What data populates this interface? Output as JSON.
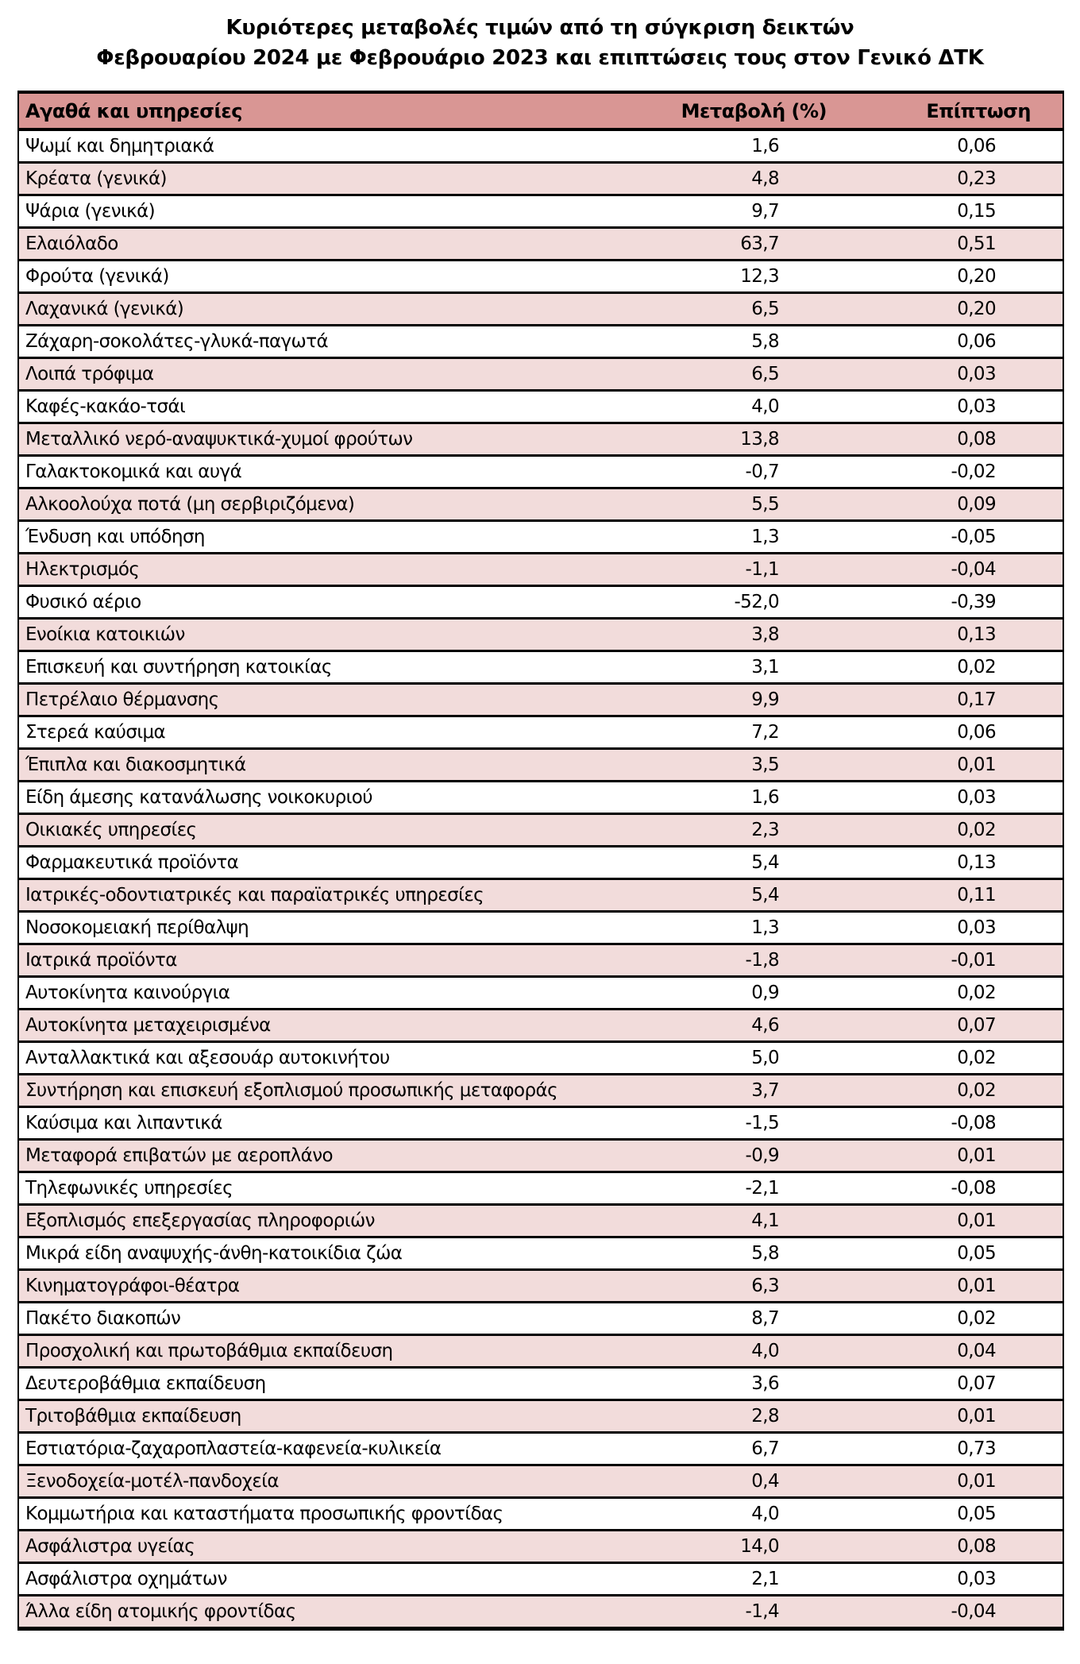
{
  "title": {
    "line1": "Κυριότερες μεταβολές τιμών από τη σύγκριση δεικτών",
    "line2": "Φεβρουαρίου 2024 με Φεβρουάριο 2023 και επιπτώσεις τους στον Γενικό ΔΤΚ"
  },
  "table": {
    "columns": [
      "Αγαθά και υπηρεσίες",
      "Μεταβολή (%)",
      "Επίπτωση"
    ],
    "rows": [
      {
        "label": "Ψωμί και δημητριακά",
        "change": "1,6",
        "impact": "0,06"
      },
      {
        "label": "Κρέατα (γενικά)",
        "change": "4,8",
        "impact": "0,23"
      },
      {
        "label": "Ψάρια (γενικά)",
        "change": "9,7",
        "impact": "0,15"
      },
      {
        "label": "Ελαιόλαδο",
        "change": "63,7",
        "impact": "0,51"
      },
      {
        "label": "Φρούτα (γενικά)",
        "change": "12,3",
        "impact": "0,20"
      },
      {
        "label": "Λαχανικά (γενικά)",
        "change": "6,5",
        "impact": "0,20"
      },
      {
        "label": "Ζάχαρη-σοκολάτες-γλυκά-παγωτά",
        "change": "5,8",
        "impact": "0,06"
      },
      {
        "label": "Λοιπά τρόφιμα",
        "change": "6,5",
        "impact": "0,03"
      },
      {
        "label": "Καφές-κακάο-τσάι",
        "change": "4,0",
        "impact": "0,03"
      },
      {
        "label": "Μεταλλικό νερό-αναψυκτικά-χυμοί φρούτων",
        "change": "13,8",
        "impact": "0,08"
      },
      {
        "label": "Γαλακτοκομικά και αυγά",
        "change": "-0,7",
        "impact": "-0,02"
      },
      {
        "label": "Αλκοολούχα ποτά (μη σερβιριζόμενα)",
        "change": "5,5",
        "impact": "0,09"
      },
      {
        "label": "Ένδυση και υπόδηση",
        "change": "1,3",
        "impact": "-0,05"
      },
      {
        "label": "Ηλεκτρισμός",
        "change": "-1,1",
        "impact": "-0,04"
      },
      {
        "label": "Φυσικό αέριο",
        "change": "-52,0",
        "impact": "-0,39"
      },
      {
        "label": "Ενοίκια κατοικιών",
        "change": "3,8",
        "impact": "0,13"
      },
      {
        "label": "Επισκευή και συντήρηση κατοικίας",
        "change": "3,1",
        "impact": "0,02"
      },
      {
        "label": "Πετρέλαιο θέρμανσης",
        "change": "9,9",
        "impact": "0,17"
      },
      {
        "label": "Στερεά καύσιμα",
        "change": "7,2",
        "impact": "0,06"
      },
      {
        "label": "Έπιπλα και διακοσμητικά",
        "change": "3,5",
        "impact": "0,01"
      },
      {
        "label": "Είδη άμεσης κατανάλωσης νοικοκυριού",
        "change": "1,6",
        "impact": "0,03"
      },
      {
        "label": "Οικιακές υπηρεσίες",
        "change": "2,3",
        "impact": "0,02"
      },
      {
        "label": "Φαρμακευτικά προϊόντα",
        "change": "5,4",
        "impact": "0,13"
      },
      {
        "label": "Ιατρικές-οδοντιατρικές και παραϊατρικές υπηρεσίες",
        "change": "5,4",
        "impact": "0,11"
      },
      {
        "label": "Νοσοκομειακή περίθαλψη",
        "change": "1,3",
        "impact": "0,03"
      },
      {
        "label": "Ιατρικά προϊόντα",
        "change": "-1,8",
        "impact": "-0,01"
      },
      {
        "label": "Αυτοκίνητα καινούργια",
        "change": "0,9",
        "impact": "0,02"
      },
      {
        "label": "Αυτοκίνητα μεταχειρισμένα",
        "change": "4,6",
        "impact": "0,07"
      },
      {
        "label": "Ανταλλακτικά και αξεσουάρ αυτοκινήτου",
        "change": "5,0",
        "impact": "0,02"
      },
      {
        "label": "Συντήρηση και επισκευή εξοπλισμού προσωπικής μεταφοράς",
        "change": "3,7",
        "impact": "0,02"
      },
      {
        "label": "Καύσιμα και λιπαντικά",
        "change": "-1,5",
        "impact": "-0,08"
      },
      {
        "label": "Μεταφορά επιβατών με αεροπλάνο",
        "change": "-0,9",
        "impact": "0,01"
      },
      {
        "label": "Τηλεφωνικές υπηρεσίες",
        "change": "-2,1",
        "impact": "-0,08"
      },
      {
        "label": "Εξοπλισμός επεξεργασίας πληροφοριών",
        "change": "4,1",
        "impact": "0,01"
      },
      {
        "label": "Μικρά είδη αναψυχής-άνθη-κατοικίδια ζώα",
        "change": "5,8",
        "impact": "0,05"
      },
      {
        "label": "Κινηματογράφοι-θέατρα",
        "change": "6,3",
        "impact": "0,01"
      },
      {
        "label": "Πακέτο διακοπών",
        "change": "8,7",
        "impact": "0,02"
      },
      {
        "label": "Προσχολική και πρωτοβάθμια εκπαίδευση",
        "change": "4,0",
        "impact": "0,04"
      },
      {
        "label": "Δευτεροβάθμια εκπαίδευση",
        "change": "3,6",
        "impact": "0,07"
      },
      {
        "label": "Τριτοβάθμια εκπαίδευση",
        "change": "2,8",
        "impact": "0,01"
      },
      {
        "label": "Εστιατόρια-ζαχαροπλαστεία-καφενεία-κυλικεία",
        "change": "6,7",
        "impact": "0,73"
      },
      {
        "label": "Ξενοδοχεία-μοτέλ-πανδοχεία",
        "change": "0,4",
        "impact": "0,01"
      },
      {
        "label": "Κομμωτήρια και καταστήματα προσωπικής φροντίδας",
        "change": "4,0",
        "impact": "0,05"
      },
      {
        "label": "Ασφάλιστρα υγείας",
        "change": "14,0",
        "impact": "0,08"
      },
      {
        "label": "Ασφάλιστρα οχημάτων",
        "change": "2,1",
        "impact": "0,03"
      },
      {
        "label": "Άλλα είδη ατομικής φροντίδας",
        "change": "-1,4",
        "impact": "-0,04"
      }
    ]
  },
  "colors": {
    "page_bg": "#ffffff",
    "header_bg": "#d99694",
    "row_bg": "#ffffff",
    "row_alt_bg": "#f2dcdb",
    "border": "#000000",
    "text": "#000000"
  }
}
